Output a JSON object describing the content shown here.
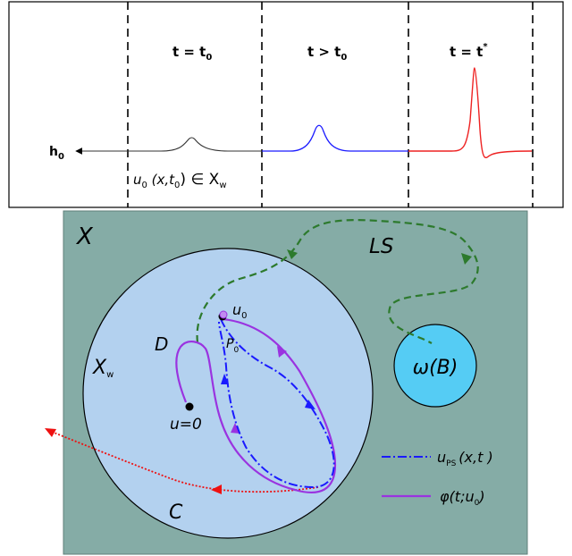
{
  "top_panel": {
    "labels": {
      "t0": "t = t",
      "t0_sub": "0",
      "tgt": "t > t",
      "tgt_sub": "0",
      "tstar": "t = t",
      "tstar_sup": "*",
      "h": "h",
      "h_sub": "0",
      "init_u": "u",
      "init_u_sub": "0",
      "init_args": " (x,t",
      "init_args_sub": "0",
      "init_close": ") ∈ X",
      "init_X_sub": "w"
    },
    "colors": {
      "early": "#333333",
      "middle": "#1a1aff",
      "late": "#ff2222"
    }
  },
  "bottom_panel": {
    "labels": {
      "X": "X",
      "LS": "LS",
      "omega": "ω(B)",
      "Xw": "X",
      "Xw_sub": "w",
      "D": "D",
      "C": "C",
      "u_eq": "u=0",
      "u0": "u",
      "u0_sub": "0",
      "P0": "P",
      "P0_sub": "0"
    },
    "legend": {
      "ups": "u",
      "ups_sub": "PS",
      "ups_args": "(x,t )",
      "phi": "φ(t;u",
      "phi_sub": "0",
      "phi_close": ")"
    },
    "colors": {
      "space": "#85aca6",
      "ball": "#b3d1ef",
      "omega": "#55ccf4",
      "ls": "#2d7a2d",
      "ps": "#1a1aff",
      "phi": "#9a33e0",
      "red": "#ee1111"
    }
  }
}
